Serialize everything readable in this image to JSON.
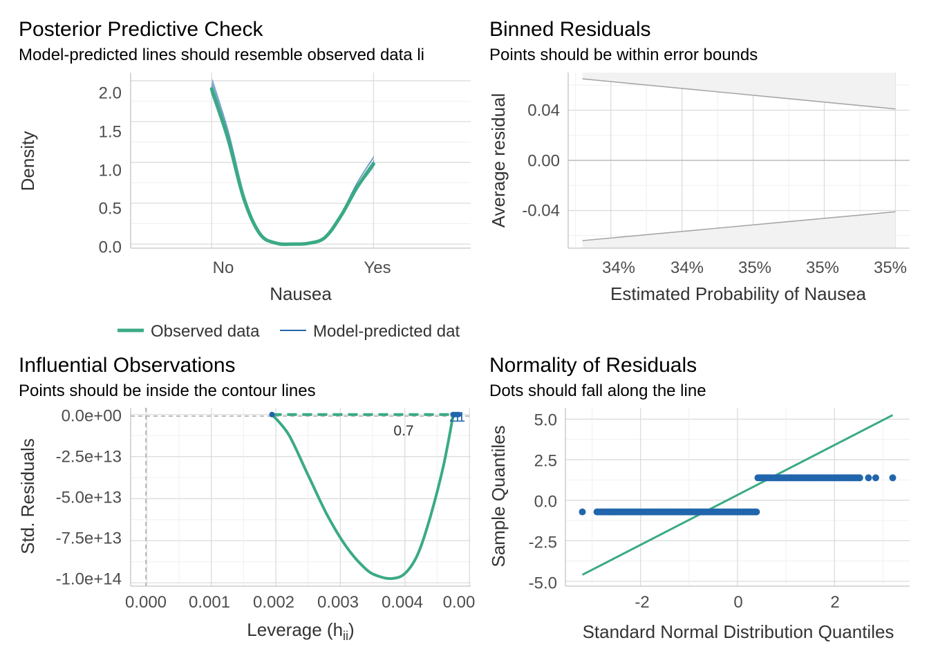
{
  "colors": {
    "observed": "#3aaa85",
    "predicted": "#2166ac",
    "ribbon_fill": "#f2f2f2",
    "ribbon_line": "#a6a6a6",
    "ref_line": "#bdbdbd"
  },
  "panels": {
    "ppc": {
      "title": "Posterior Predictive Check",
      "subtitle": "Model-predicted lines should resemble observed data li",
      "xlabel": "Nausea",
      "ylabel": "Density",
      "y_ticks": [
        "0.0",
        "0.5",
        "1.0",
        "1.5",
        "2.0"
      ],
      "x_ticks": [
        "No",
        "Yes"
      ],
      "legend": {
        "observed": "Observed data",
        "predicted": "Model-predicted dat"
      }
    },
    "binned": {
      "title": "Binned Residuals",
      "subtitle": "Points should be within error bounds",
      "xlabel": "Estimated Probability of Nausea",
      "ylabel": "Average residual",
      "y_ticks": [
        "-0.04",
        "0.00",
        "0.04"
      ],
      "x_ticks": [
        "34%",
        "34%",
        "35%",
        "35%",
        "35%"
      ]
    },
    "influence": {
      "title": "Influential Observations",
      "subtitle": "Points should be inside the contour lines",
      "xlabel_main": "Leverage (h",
      "xlabel_sub": "ii",
      "xlabel_close": ")",
      "ylabel": "Std. Residuals",
      "y_ticks": [
        "0.0e+00",
        "-2.5e+13",
        "-5.0e+13",
        "-7.5e+13",
        "-1.0e+14"
      ],
      "x_ticks": [
        "0.000",
        "0.001",
        "0.002",
        "0.003",
        "0.004",
        "0.00"
      ],
      "contour_label": "0.7",
      "point_labels": [
        "2",
        "1",
        "1"
      ]
    },
    "qq": {
      "title": "Normality of Residuals",
      "subtitle": "Dots should fall along the line",
      "xlabel": "Standard Normal Distribution Quantiles",
      "ylabel": "Sample Quantiles",
      "y_ticks": [
        "5.0",
        "2.5",
        "0.0",
        "-2.5",
        "-5.0"
      ],
      "x_ticks": [
        "-2",
        "0",
        "2"
      ]
    }
  },
  "chart_data": [
    {
      "type": "line",
      "panel": "Posterior Predictive Check",
      "title": "Posterior Predictive Check",
      "xlabel": "Nausea",
      "ylabel": "Density",
      "xlim": [
        -0.5,
        1.6
      ],
      "ylim": [
        -0.05,
        2.1
      ],
      "categories": [
        "No",
        "Yes"
      ],
      "series": [
        {
          "name": "Observed data",
          "x": [
            0,
            0.1,
            0.2,
            0.3,
            0.4,
            0.5,
            0.6,
            0.7,
            0.8,
            0.9,
            1.0
          ],
          "y": [
            1.9,
            1.3,
            0.55,
            0.12,
            0.01,
            0.0,
            0.01,
            0.08,
            0.35,
            0.7,
            0.98
          ]
        },
        {
          "name": "Model-predicted dat",
          "x": [
            0,
            1.0
          ],
          "y_range_start": [
            1.86,
            2.02
          ],
          "y_range_end": [
            0.93,
            1.08
          ]
        }
      ],
      "grid": true,
      "legend": "bottom"
    },
    {
      "type": "area",
      "panel": "Binned Residuals",
      "title": "Binned Residuals",
      "xlabel": "Estimated Probability of Nausea",
      "ylabel": "Average residual",
      "xlim": [
        0.3434,
        0.3458
      ],
      "ylim": [
        -0.07,
        0.07
      ],
      "bounds_upper": [
        [
          0.3435,
          0.065
        ],
        [
          0.3457,
          0.041
        ]
      ],
      "bounds_lower": [
        [
          0.3435,
          -0.064
        ],
        [
          0.3457,
          -0.041
        ]
      ],
      "reference_y": 0.0,
      "grid": true
    },
    {
      "type": "scatter",
      "panel": "Influential Observations",
      "title": "Influential Observations",
      "xlabel": "Leverage (hii)",
      "ylabel": "Std. Residuals",
      "xlim": [
        -0.00025,
        0.00502
      ],
      "ylim": [
        -102000000000000.0,
        4000000000000.0
      ],
      "points": [
        [
          0.00194,
          0.0
        ],
        [
          0.00475,
          0.0
        ],
        [
          0.00479,
          0.0
        ],
        [
          0.00483,
          0.0
        ]
      ],
      "contour": {
        "label": "0.7",
        "x": [
          0.00194,
          0.0022,
          0.0025,
          0.0028,
          0.0031,
          0.0034,
          0.0036,
          0.0038,
          0.004,
          0.0042,
          0.0044,
          0.0046,
          0.00475
        ],
        "y": [
          0.0,
          -12000000000000.0,
          -36000000000000.0,
          -60000000000000.0,
          -79000000000000.0,
          -92000000000000.0,
          -96200000000000.0,
          -97500000000000.0,
          -94500000000000.0,
          -83000000000000.0,
          -60000000000000.0,
          -30000000000000.0,
          0.0
        ]
      },
      "reference_x": 0.0,
      "reference_y": 0.0,
      "grid": true
    },
    {
      "type": "scatter",
      "panel": "Normality of Residuals",
      "title": "Normality of Residuals",
      "xlabel": "Standard Normal Distribution Quantiles",
      "ylabel": "Sample Quantiles",
      "xlim": [
        -3.55,
        3.55
      ],
      "ylim": [
        -5.3,
        5.7
      ],
      "qq_line": [
        [
          -3.2,
          -4.6
        ],
        [
          3.2,
          5.25
        ]
      ],
      "point_groups": [
        {
          "y": -0.72,
          "x_from": -2.9,
          "x_to": 0.42,
          "outliers": [
            -3.2
          ]
        },
        {
          "y": 1.38,
          "x_from": 0.42,
          "x_to": 2.55,
          "outliers": [
            2.7,
            2.85,
            3.2
          ]
        }
      ],
      "grid": true
    }
  ]
}
